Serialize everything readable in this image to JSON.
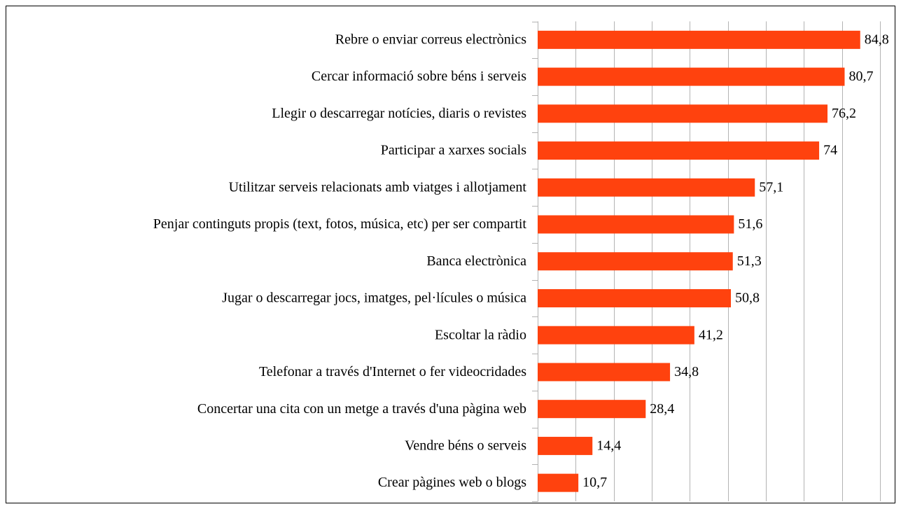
{
  "chart_data": {
    "type": "bar",
    "orientation": "horizontal",
    "categories": [
      "Rebre o enviar correus electrònics",
      "Cercar informació sobre béns i serveis",
      "Llegir o descarregar notícies, diaris o revistes",
      "Participar a xarxes socials",
      "Utilitzar serveis relacionats amb viatges i allotjament",
      "Penjar continguts propis (text, fotos, música, etc) per ser compartit",
      "Banca electrònica",
      "Jugar o descarregar jocs, imatges, pel·lícules o música",
      "Escoltar la ràdio",
      "Telefonar a través d'Internet o fer videocridades",
      "Concertar una cita con un metge a través d'una pàgina web",
      "Vendre béns o serveis",
      "Crear pàgines web o blogs"
    ],
    "values": [
      84.8,
      80.7,
      76.2,
      74,
      57.1,
      51.6,
      51.3,
      50.8,
      41.2,
      34.8,
      28.4,
      14.4,
      10.7
    ],
    "value_labels": [
      "84,8",
      "80,7",
      "76,2",
      "74",
      "57,1",
      "51,6",
      "51,3",
      "50,8",
      "41,2",
      "34,8",
      "28,4",
      "14,4",
      "10,7"
    ],
    "color": "#ff420e",
    "xlim": [
      0,
      90
    ],
    "xticks": [
      0,
      10,
      20,
      30,
      40,
      50,
      60,
      70,
      80,
      90
    ],
    "grid": true
  }
}
